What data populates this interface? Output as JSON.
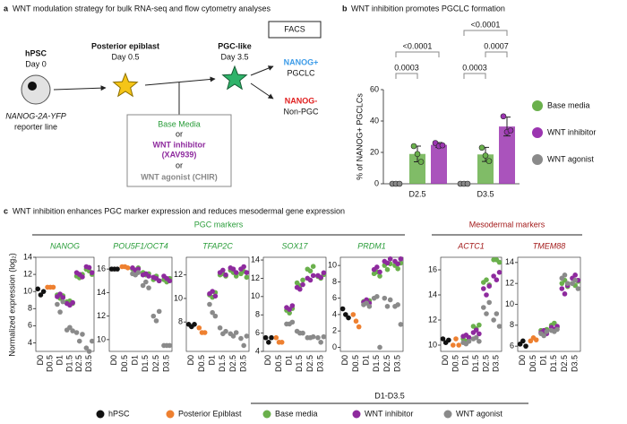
{
  "panel_a": {
    "label": "a",
    "title": "WNT modulation strategy for bulk RNA-seq and flow cytometry analyses",
    "hpsc": {
      "name": "hPSC",
      "day": "Day 0",
      "line1": "NANOG-2A-YFP",
      "line2": "reporter line"
    },
    "epiblast": {
      "name": "Posterior epiblast",
      "day": "Day 0.5"
    },
    "pgc": {
      "name": "PGC-like",
      "day": "Day 3.5"
    },
    "facs": "FACS",
    "pos": {
      "name": "NANOG+",
      "sub": "PGCLC"
    },
    "neg": {
      "name": "NANOG-",
      "sub": "Non-PGC"
    },
    "treatments": [
      "Base Media",
      "or",
      "WNT inhibitor",
      "(XAV939)",
      "or",
      "WNT agonist (CHIR)"
    ]
  },
  "panel_c": {
    "label": "c",
    "title": "WNT inhibition enhances PGC marker expression and reduces mesodermal gene expression",
    "ylabel": "Normalized expression (log₂)",
    "groups": [
      "PGC markers",
      "Mesodermal markers"
    ],
    "bracket_label": "D1-D3.5",
    "legend": [
      {
        "name": "hPSC",
        "color": "#111111"
      },
      {
        "name": "Posterior Epiblast",
        "color": "#ee8030"
      },
      {
        "name": "Base media",
        "color": "#6ab04c"
      },
      {
        "name": "WNT inhibitor",
        "color": "#8e2a9e"
      },
      {
        "name": "WNT agonist",
        "color": "#8a8a8a"
      }
    ]
  },
  "chart_data": [
    {
      "type": "bar",
      "label": "b",
      "title": "WNT inhibition promotes PGCLC formation",
      "ylabel": "% of NANOG+ PGCLCs",
      "categories": [
        "D2.5",
        "D3.5"
      ],
      "ylim": [
        0,
        60
      ],
      "yticks": [
        0,
        20,
        40,
        60
      ],
      "legend": "right",
      "series": [
        {
          "name": "Base media",
          "color": "#6ab04c",
          "values": [
            19,
            18.7
          ],
          "errors": [
            5,
            4.5
          ],
          "points": [
            [
              24,
              19,
              14
            ],
            [
              23,
              18,
              14.5
            ]
          ]
        },
        {
          "name": "WNT inhibitor",
          "color": "#9b35b0",
          "values": [
            24.8,
            36.5
          ],
          "errors": [
            1.5,
            6
          ],
          "points": [
            [
              26,
              24,
              24.5
            ],
            [
              43,
              33,
              34
            ]
          ]
        },
        {
          "name": "WNT agonist",
          "color": "#8a8a8a",
          "values": [
            0,
            0
          ],
          "points": [
            [
              0,
              0,
              0
            ],
            [
              0,
              0,
              0
            ]
          ]
        }
      ],
      "annotations": [
        "<0.0001",
        "<0.0001",
        "0.0003",
        "0.0003",
        "0.0007"
      ]
    },
    {
      "type": "strip",
      "title": "NANOG",
      "categories": [
        "D0",
        "D0.5",
        "D1",
        "D1.5",
        "D2.5",
        "D3.5"
      ],
      "ylim": [
        3,
        14
      ],
      "yticks": [
        4,
        6,
        8,
        10,
        12,
        14
      ],
      "series": [
        {
          "values": [
            [
              10.3,
              9.6,
              10.0
            ],
            null,
            null,
            null,
            null,
            null
          ]
        },
        {
          "values": [
            null,
            [
              10.5,
              10.5,
              10.5
            ],
            null,
            null,
            null,
            null
          ]
        },
        {
          "values": [
            null,
            null,
            [
              9.6,
              9.2,
              9.5
            ],
            [
              8.8,
              8.9,
              8.6
            ],
            [
              11.8,
              11.6,
              12.0
            ],
            [
              12.6,
              12.4,
              12.0
            ]
          ]
        },
        {
          "values": [
            null,
            null,
            [
              9.4,
              9.7,
              9.3
            ],
            [
              8.6,
              8.4,
              8.7
            ],
            [
              12.2,
              12.0,
              11.7
            ],
            [
              12.9,
              12.8,
              12.2
            ]
          ]
        },
        {
          "values": [
            null,
            null,
            [
              8.5,
              7.6,
              8.8
            ],
            [
              5.5,
              5.8,
              5.4
            ],
            [
              5.2,
              4.2,
              5.0
            ],
            [
              3.4,
              3.0,
              4.2
            ]
          ]
        }
      ]
    },
    {
      "type": "strip",
      "title": "POU5F1/OCT4",
      "categories": [
        "D0",
        "D0.5",
        "D1",
        "D1.5",
        "D2.5",
        "D3.5"
      ],
      "ylim": [
        9,
        17
      ],
      "yticks": [
        10,
        12,
        14,
        16
      ],
      "series": [
        {
          "values": [
            [
              16.0,
              16.0,
              16.0
            ],
            null,
            null,
            null,
            null,
            null
          ]
        },
        {
          "values": [
            null,
            [
              16.2,
              16.2,
              16.1
            ],
            null,
            null,
            null,
            null
          ]
        },
        {
          "values": [
            null,
            null,
            [
              16.0,
              15.9,
              16.1
            ],
            [
              15.7,
              15.5,
              15.6
            ],
            [
              15.1,
              15.4,
              15.0
            ],
            [
              15.1,
              14.9,
              15.2
            ]
          ]
        },
        {
          "values": [
            null,
            null,
            [
              16.1,
              15.9,
              16.0
            ],
            [
              15.5,
              15.6,
              15.4
            ],
            [
              15.3,
              15.2,
              15.0
            ],
            [
              15.4,
              15.2,
              15.0
            ]
          ]
        },
        {
          "values": [
            null,
            null,
            [
              15.6,
              15.5,
              15.7
            ],
            [
              14.6,
              14.9,
              14.4
            ],
            [
              12.0,
              11.6,
              12.4
            ],
            [
              9.5,
              9.5,
              9.5
            ]
          ]
        }
      ]
    },
    {
      "type": "strip",
      "title": "TFAP2C",
      "categories": [
        "D0",
        "D0.5",
        "D1",
        "D1.5",
        "D2.5",
        "D3.5"
      ],
      "ylim": [
        5.5,
        13.5
      ],
      "yticks": [
        8,
        10,
        12
      ],
      "series": [
        {
          "values": [
            [
              7.8,
              7.6,
              7.8
            ],
            null,
            null,
            null,
            null,
            null
          ]
        },
        {
          "values": [
            null,
            [
              7.5,
              7.1,
              7.1
            ],
            null,
            null,
            null,
            null
          ]
        },
        {
          "values": [
            null,
            null,
            [
              10.3,
              10.1,
              10.5
            ],
            [
              12.0,
              12.1,
              11.9
            ],
            [
              12.4,
              12.2,
              11.9
            ],
            [
              12.1,
              12.3,
              11.8
            ]
          ]
        },
        {
          "values": [
            null,
            null,
            [
              10.4,
              10.6,
              10.2
            ],
            [
              12.2,
              12.4,
              12.0
            ],
            [
              12.6,
              12.5,
              12.2
            ],
            [
              12.5,
              12.7,
              12.2
            ]
          ]
        },
        {
          "values": [
            null,
            null,
            [
              9.5,
              8.8,
              8.5
            ],
            [
              7.5,
              7.0,
              7.2
            ],
            [
              7.0,
              6.8,
              7.1
            ],
            [
              6.6,
              6.0,
              6.8
            ]
          ]
        }
      ]
    },
    {
      "type": "strip",
      "title": "SOX17",
      "categories": [
        "D0",
        "D0.5",
        "D1",
        "D1.5",
        "D2.5",
        "D3.5"
      ],
      "ylim": [
        4,
        14.3
      ],
      "yticks": [
        4,
        6,
        8,
        10,
        12,
        14
      ],
      "series": [
        {
          "values": [
            [
              5.5,
              5.0,
              5.5
            ],
            null,
            null,
            null,
            null,
            null
          ]
        },
        {
          "values": [
            null,
            [
              5.5,
              5.0,
              5.0
            ],
            null,
            null,
            null,
            null
          ]
        },
        {
          "values": [
            null,
            null,
            [
              8.5,
              8.2,
              8.7
            ],
            [
              11.5,
              11.2,
              11.8
            ],
            [
              13.0,
              12.8,
              13.3
            ],
            [
              12.2,
              12.0,
              12.4
            ]
          ]
        },
        {
          "values": [
            null,
            null,
            [
              8.8,
              8.6,
              9.0
            ],
            [
              11.0,
              10.8,
              11.3
            ],
            [
              12.0,
              11.8,
              12.3
            ],
            [
              12.3,
              12.1,
              12.6
            ]
          ]
        },
        {
          "values": [
            null,
            null,
            [
              7.0,
              7.0,
              7.2
            ],
            [
              6.2,
              6.0,
              6.0
            ],
            [
              5.5,
              5.5,
              5.6
            ],
            [
              5.5,
              5.0,
              5.6
            ]
          ]
        }
      ]
    },
    {
      "type": "strip",
      "title": "PRDM1",
      "categories": [
        "D0",
        "D0.5",
        "D1",
        "D1.5",
        "D2.5",
        "D3.5"
      ],
      "ylim": [
        -0.5,
        11
      ],
      "yticks": [
        0,
        2,
        4,
        6,
        8,
        10
      ],
      "series": [
        {
          "values": [
            [
              4.7,
              4.0,
              3.6
            ],
            null,
            null,
            null,
            null,
            null
          ]
        },
        {
          "values": [
            null,
            [
              4.0,
              3.2,
              2.5
            ],
            null,
            null,
            null,
            null
          ]
        },
        {
          "values": [
            null,
            null,
            [
              5.6,
              5.5,
              5.7
            ],
            [
              9.0,
              9.2,
              8.7
            ],
            [
              10.0,
              9.5,
              10.2
            ],
            [
              10.0,
              9.6,
              10.3
            ]
          ]
        },
        {
          "values": [
            null,
            null,
            [
              5.5,
              5.8,
              5.4
            ],
            [
              9.5,
              9.8,
              9.2
            ],
            [
              10.5,
              10.3,
              10.8
            ],
            [
              10.5,
              10.2,
              10.8
            ]
          ]
        },
        {
          "values": [
            null,
            null,
            [
              5.2,
              5.4,
              5.0
            ],
            [
              6.0,
              6.2,
              0.0
            ],
            [
              6.0,
              5.0,
              5.8
            ],
            [
              5.0,
              5.2,
              2.8
            ]
          ]
        }
      ]
    },
    {
      "type": "strip",
      "title": "ACTC1",
      "categories": [
        "D0",
        "D0.5",
        "D1",
        "D1.5",
        "D2.5",
        "D3.5"
      ],
      "ylim": [
        9.5,
        17
      ],
      "yticks": [
        10,
        12,
        14,
        16
      ],
      "series": [
        {
          "values": [
            [
              10.5,
              10.2,
              10.4
            ],
            null,
            null,
            null,
            null,
            null
          ]
        },
        {
          "values": [
            null,
            [
              10.0,
              10.5,
              10.0
            ],
            null,
            null,
            null,
            null
          ]
        },
        {
          "values": [
            null,
            null,
            [
              10.5,
              10.3,
              10.6
            ],
            [
              11.5,
              11.3,
              11.6
            ],
            [
              15.0,
              15.2,
              14.8
            ],
            [
              16.8,
              16.8,
              16.6
            ]
          ]
        },
        {
          "values": [
            null,
            null,
            [
              10.7,
              10.8,
              10.6
            ],
            [
              11.0,
              11.2,
              10.9
            ],
            [
              14.5,
              14.0,
              14.7
            ],
            [
              15.5,
              15.2,
              15.8
            ]
          ]
        },
        {
          "values": [
            null,
            null,
            [
              10.2,
              10.1,
              10.3
            ],
            [
              10.5,
              10.6,
              10.3
            ],
            [
              13.0,
              12.5,
              13.4
            ],
            [
              12.0,
              12.5,
              11.5
            ]
          ]
        }
      ]
    },
    {
      "type": "strip",
      "title": "TMEM88",
      "categories": [
        "D0",
        "D0.5",
        "D1",
        "D1.5",
        "D2.5",
        "D3.5"
      ],
      "ylim": [
        5.5,
        14.5
      ],
      "yticks": [
        6,
        8,
        10,
        12,
        14
      ],
      "series": [
        {
          "values": [
            [
              6.2,
              6.5,
              6.0
            ],
            null,
            null,
            null,
            null,
            null
          ]
        },
        {
          "values": [
            null,
            [
              6.5,
              6.8,
              6.6
            ],
            null,
            null,
            null,
            null
          ]
        },
        {
          "values": [
            null,
            null,
            [
              7.5,
              7.4,
              7.6
            ],
            [
              8.0,
              8.2,
              7.8
            ],
            [
              12.0,
              12.3,
              11.7
            ],
            [
              12.0,
              11.8,
              12.2
            ]
          ]
        },
        {
          "values": [
            null,
            null,
            [
              7.3,
              7.5,
              7.2
            ],
            [
              7.8,
              7.6,
              7.9
            ],
            [
              11.5,
              11.0,
              11.8
            ],
            [
              12.5,
              12.8,
              12.3
            ]
          ]
        },
        {
          "values": [
            null,
            null,
            [
              7.2,
              7.0,
              7.4
            ],
            [
              7.5,
              7.4,
              7.6
            ],
            [
              12.5,
              12.8,
              12.0
            ],
            [
              12.0,
              12.3,
              11.5
            ]
          ]
        }
      ]
    }
  ]
}
